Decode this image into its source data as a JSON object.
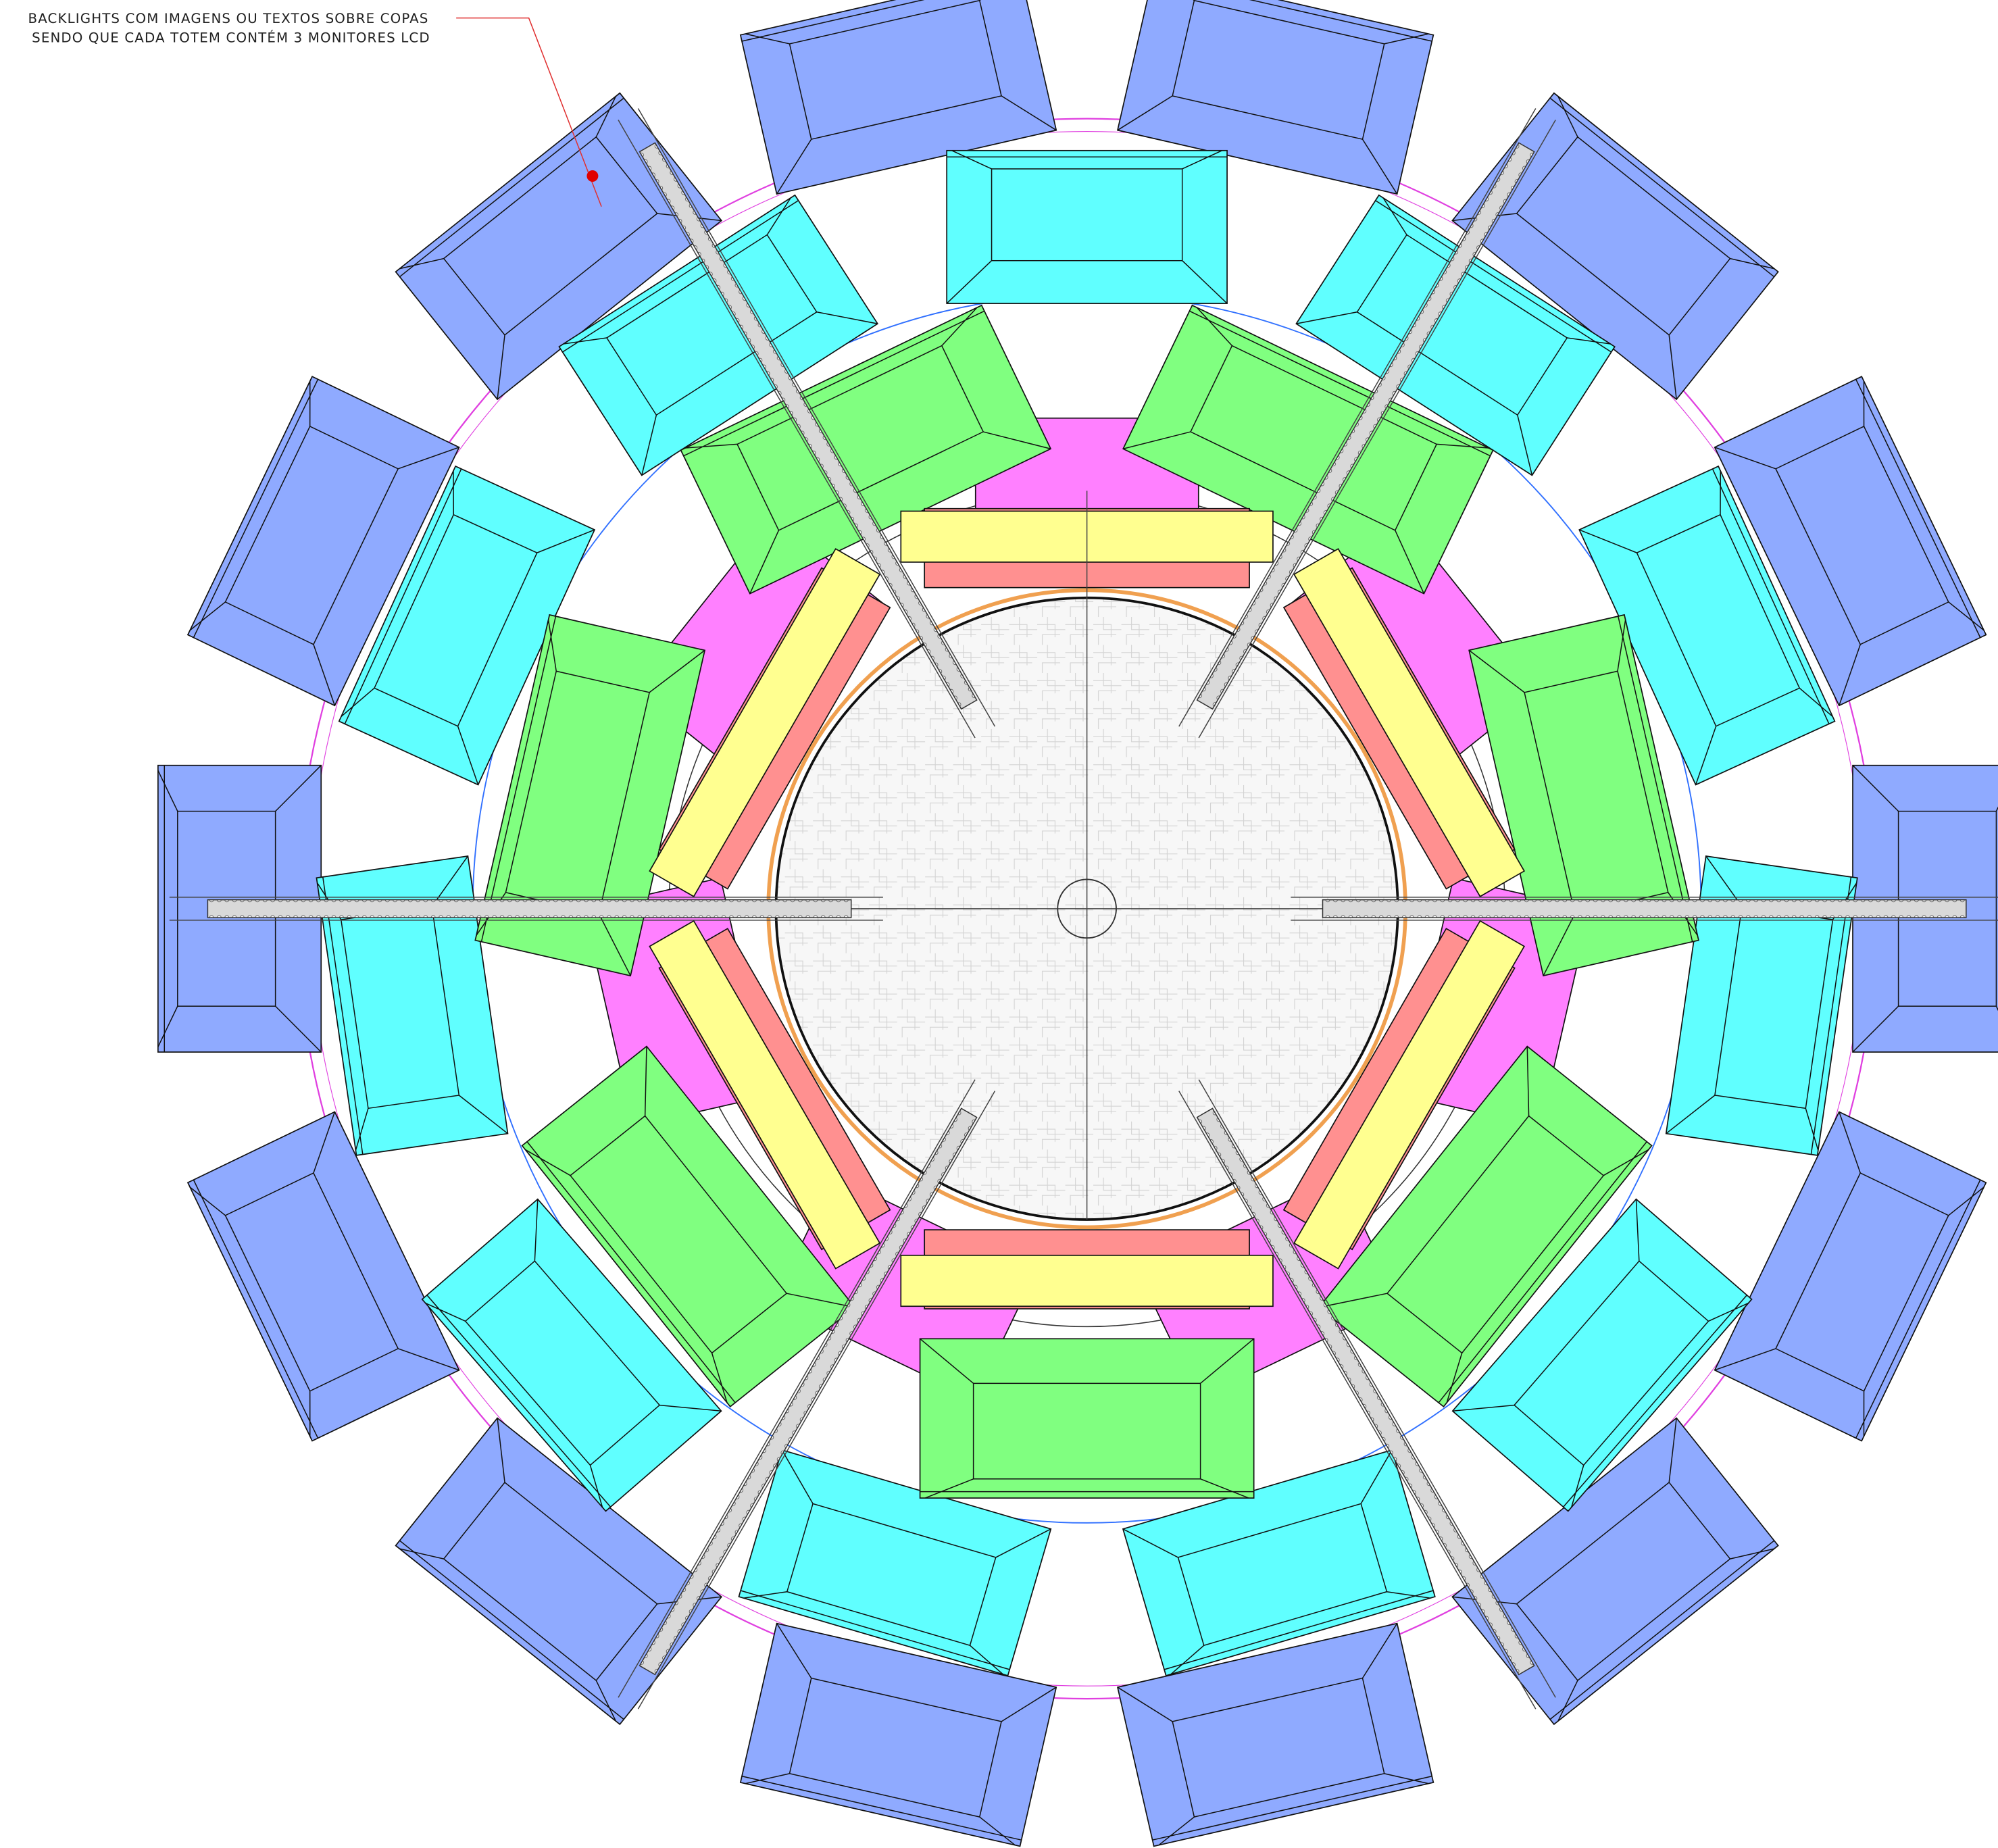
{
  "annotation": {
    "lines": [
      "BACKLIGHTS COM IMAGENS OU TEXTOS SOBRE COPAS",
      "SENDO QUE CADA TOTEM CONTÉM 3 MONITORES LCD"
    ]
  }
}
